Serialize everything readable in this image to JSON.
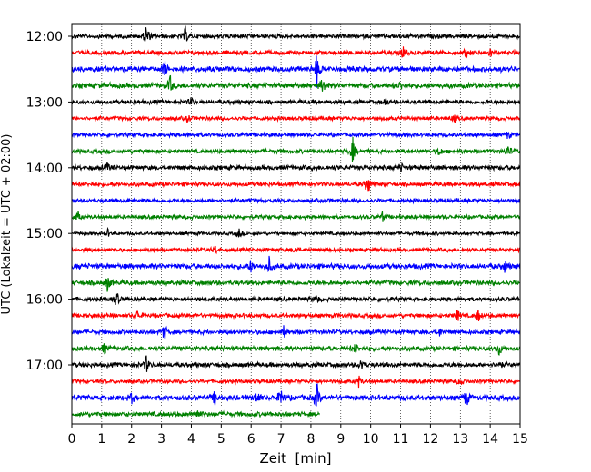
{
  "chart_data": {
    "type": "line",
    "title": "",
    "xlabel": "Zeit  [min]",
    "ylabel": "UTC (Lokalzeit = UTC + 02:00)",
    "xlim": [
      0,
      15
    ],
    "x_ticks": [
      0,
      1,
      2,
      3,
      4,
      5,
      6,
      7,
      8,
      9,
      10,
      11,
      12,
      13,
      14,
      15
    ],
    "x_tick_labels": [
      "0",
      "1",
      "2",
      "3",
      "4",
      "5",
      "6",
      "7",
      "8",
      "9",
      "10",
      "11",
      "12",
      "13",
      "14",
      "15"
    ],
    "y_tick_labels": [
      "12:00",
      "13:00",
      "14:00",
      "15:00",
      "16:00",
      "17:00"
    ],
    "y_tick_rows": [
      0,
      4,
      8,
      12,
      16,
      20
    ],
    "grid": "vertical dotted",
    "colors": {
      "black": "#000000",
      "red": "#ff0000",
      "blue": "#0000ff",
      "green": "#008000"
    },
    "color_cycle": [
      "black",
      "red",
      "blue",
      "green"
    ],
    "trace_interval_min": 15,
    "traces": [
      {
        "start": "12:00",
        "color": "black",
        "noise": 2.0,
        "end_min": 15,
        "events": [
          [
            2.5,
            16
          ],
          [
            3.8,
            9
          ]
        ]
      },
      {
        "start": "12:15",
        "color": "red",
        "noise": 2.0,
        "end_min": 15,
        "events": [
          [
            11.1,
            8
          ],
          [
            13.2,
            5
          ],
          [
            14.0,
            5
          ]
        ]
      },
      {
        "start": "12:30",
        "color": "blue",
        "noise": 2.5,
        "end_min": 15,
        "events": [
          [
            3.1,
            10
          ],
          [
            8.2,
            18
          ]
        ]
      },
      {
        "start": "12:45",
        "color": "green",
        "noise": 2.5,
        "end_min": 15,
        "events": [
          [
            3.3,
            10
          ],
          [
            8.4,
            10
          ],
          [
            11.0,
            4
          ]
        ]
      },
      {
        "start": "13:00",
        "color": "black",
        "noise": 2.0,
        "end_min": 15,
        "events": [
          [
            4.0,
            5
          ],
          [
            10.5,
            5
          ]
        ]
      },
      {
        "start": "13:15",
        "color": "red",
        "noise": 1.8,
        "end_min": 15,
        "events": [
          [
            3.9,
            5
          ],
          [
            12.8,
            5
          ]
        ]
      },
      {
        "start": "13:30",
        "color": "blue",
        "noise": 1.8,
        "end_min": 15,
        "events": [
          [
            14.6,
            5
          ]
        ]
      },
      {
        "start": "13:45",
        "color": "green",
        "noise": 2.0,
        "end_min": 15,
        "events": [
          [
            9.4,
            14
          ],
          [
            12.3,
            6
          ],
          [
            14.6,
            7
          ]
        ]
      },
      {
        "start": "14:00",
        "color": "black",
        "noise": 2.2,
        "end_min": 15,
        "events": [
          [
            1.2,
            5
          ],
          [
            11.0,
            5
          ]
        ]
      },
      {
        "start": "14:15",
        "color": "red",
        "noise": 2.0,
        "end_min": 15,
        "events": [
          [
            9.9,
            14
          ]
        ]
      },
      {
        "start": "14:30",
        "color": "blue",
        "noise": 1.8,
        "end_min": 15,
        "events": []
      },
      {
        "start": "14:45",
        "color": "green",
        "noise": 1.8,
        "end_min": 15,
        "events": [
          [
            0.2,
            6
          ],
          [
            10.4,
            5
          ]
        ]
      },
      {
        "start": "15:00",
        "color": "black",
        "noise": 1.5,
        "end_min": 15,
        "events": [
          [
            1.2,
            4
          ],
          [
            5.6,
            5
          ]
        ]
      },
      {
        "start": "15:15",
        "color": "red",
        "noise": 1.8,
        "end_min": 15,
        "events": [
          [
            4.8,
            4
          ],
          [
            7.5,
            4
          ]
        ]
      },
      {
        "start": "15:30",
        "color": "blue",
        "noise": 2.5,
        "end_min": 15,
        "events": [
          [
            6.0,
            8
          ],
          [
            6.6,
            10
          ],
          [
            14.5,
            7
          ]
        ]
      },
      {
        "start": "15:45",
        "color": "green",
        "noise": 2.2,
        "end_min": 15,
        "events": [
          [
            1.2,
            10
          ]
        ]
      },
      {
        "start": "16:00",
        "color": "black",
        "noise": 2.0,
        "end_min": 15,
        "events": [
          [
            1.5,
            9
          ],
          [
            8.2,
            5
          ]
        ]
      },
      {
        "start": "16:15",
        "color": "red",
        "noise": 2.0,
        "end_min": 15,
        "events": [
          [
            12.9,
            7
          ],
          [
            13.6,
            7
          ],
          [
            2.2,
            5
          ]
        ]
      },
      {
        "start": "16:30",
        "color": "blue",
        "noise": 2.0,
        "end_min": 15,
        "events": [
          [
            3.1,
            10
          ],
          [
            7.1,
            7
          ],
          [
            12.3,
            5
          ]
        ]
      },
      {
        "start": "16:45",
        "color": "green",
        "noise": 2.2,
        "end_min": 15,
        "events": [
          [
            1.1,
            6
          ],
          [
            9.5,
            6
          ],
          [
            14.3,
            7
          ]
        ]
      },
      {
        "start": "17:00",
        "color": "black",
        "noise": 2.2,
        "end_min": 15,
        "events": [
          [
            2.5,
            10
          ],
          [
            9.7,
            7
          ],
          [
            14.3,
            5
          ]
        ]
      },
      {
        "start": "17:15",
        "color": "red",
        "noise": 1.8,
        "end_min": 15,
        "events": [
          [
            9.6,
            7
          ],
          [
            13.0,
            5
          ]
        ]
      },
      {
        "start": "17:30",
        "color": "blue",
        "noise": 2.5,
        "end_min": 15,
        "events": [
          [
            2.0,
            6
          ],
          [
            4.8,
            9
          ],
          [
            6.2,
            9
          ],
          [
            7.0,
            12
          ],
          [
            8.2,
            16
          ],
          [
            13.2,
            10
          ]
        ]
      },
      {
        "start": "17:45",
        "color": "green",
        "noise": 2.2,
        "end_min": 8.3,
        "events": [
          [
            4.2,
            6
          ]
        ]
      }
    ]
  }
}
